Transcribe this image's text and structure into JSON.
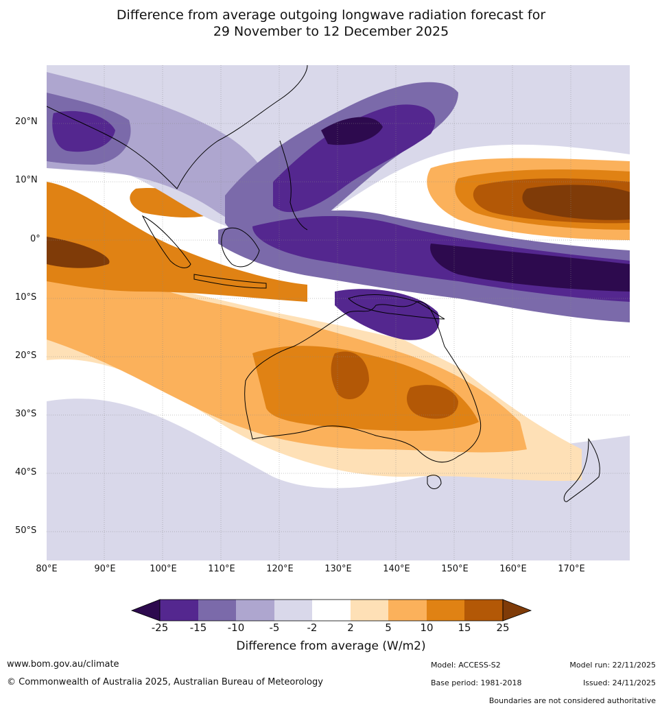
{
  "title": {
    "line1": "Difference from average outgoing longwave radiation forecast for",
    "line2": "29 November to 12 December 2025"
  },
  "map": {
    "latitude_labels": [
      "20°N",
      "10°N",
      "0°",
      "10°S",
      "20°S",
      "30°S",
      "40°S",
      "50°S"
    ],
    "longitude_labels": [
      "80°E",
      "90°E",
      "100°E",
      "110°E",
      "120°E",
      "130°E",
      "140°E",
      "150°E",
      "160°E",
      "170°E"
    ]
  },
  "colorbar": {
    "ticks": [
      "-25",
      "-15",
      "-10",
      "-5",
      "-2",
      "2",
      "5",
      "10",
      "15",
      "25"
    ],
    "colors": [
      "#2d0a4e",
      "#54278f",
      "#7b6aaa",
      "#aea6cf",
      "#d9d8ea",
      "#ffffff",
      "#fee0b6",
      "#fbb15b",
      "#e08214",
      "#b35806",
      "#7f3b08"
    ],
    "label": "Difference from average (W/m2)"
  },
  "footer": {
    "website": "www.bom.gov.au/climate",
    "copyright": "© Commonwealth of Australia 2025, Australian Bureau of Meteorology",
    "model": "Model: ACCESS-S2",
    "base_period": "Base period: 1981-2018",
    "model_run": "Model run: 22/11/2025",
    "issued": "Issued: 24/11/2025",
    "disclaimer": "Boundaries are not considered authoritative"
  }
}
